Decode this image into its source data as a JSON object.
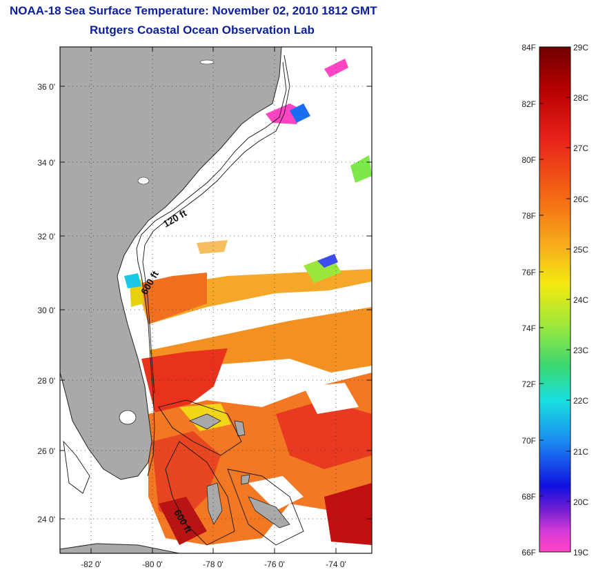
{
  "title": {
    "line1": "NOAA-18 Sea Surface Temperature:  November 02, 2010 1812 GMT",
    "line2": "Rutgers Coastal Ocean Observation Lab"
  },
  "map": {
    "lat_ticks": [
      "36 0'",
      "34 0'",
      "32 0'",
      "30 0'",
      "28 0'",
      "26 0'",
      "24 0'"
    ],
    "lon_ticks": [
      "-82 0'",
      "-80 0'",
      "-78 0'",
      "-76 0'",
      "-74 0'"
    ],
    "isobath_labels": [
      "120 ft",
      "600 ft",
      "600 ft"
    ],
    "colors": {
      "land": "#a9a9a9",
      "ocean_nodata": "#ffffff"
    }
  },
  "colorbar": {
    "fahrenheit_labels": [
      "84F",
      "82F",
      "80F",
      "78F",
      "76F",
      "74F",
      "72F",
      "70F",
      "68F",
      "66F"
    ],
    "celsius_labels": [
      "29C",
      "28C",
      "27C",
      "26C",
      "25C",
      "24C",
      "23C",
      "22C",
      "21C",
      "20C",
      "19C"
    ]
  }
}
